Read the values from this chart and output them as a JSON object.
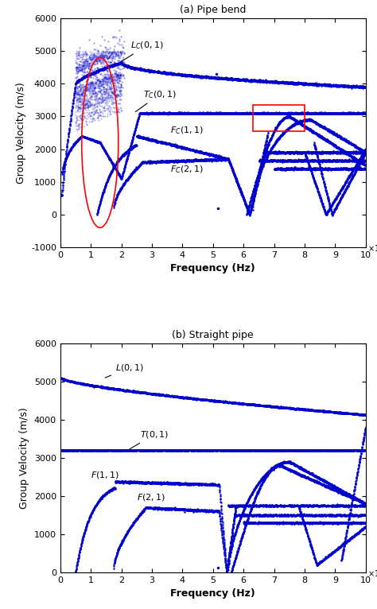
{
  "title_a": "(a) Pipe bend",
  "title_b": "(b) Straight pipe",
  "xlabel": "Frequency (Hz)",
  "ylabel": "Group Velocity (m/s)",
  "color": "#0000CC",
  "figsize": [
    4.74,
    7.66
  ],
  "dpi": 100
}
